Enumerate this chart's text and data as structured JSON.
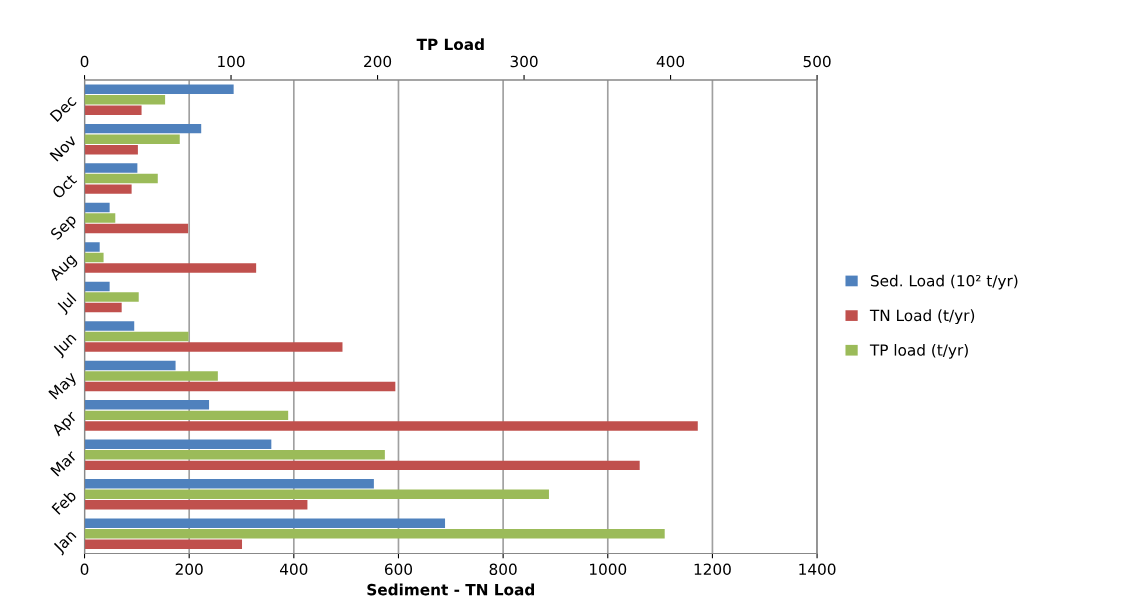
{
  "chart_data": {
    "type": "bar",
    "orientation": "horizontal",
    "xlabel": "Sediment - TN Load",
    "x2label": "TP Load",
    "categories": [
      "Dec",
      "Nov",
      "Oct",
      "Sep",
      "Aug",
      "Jul",
      "Jun",
      "May",
      "Apr",
      "Mar",
      "Feb",
      "Jan"
    ],
    "series": [
      {
        "name": "Sed. Load (10² t/yr)",
        "color": "#4f81bd",
        "values": [
          285,
          223,
          101,
          48,
          29,
          48,
          95,
          174,
          238,
          357,
          553,
          689
        ]
      },
      {
        "name": "TN Load (t/yr)",
        "color": "#c0504d",
        "values": [
          109,
          102,
          90,
          198,
          328,
          71,
          493,
          594,
          1172,
          1061,
          426,
          301
        ]
      },
      {
        "name": "TP load (t/yr)",
        "color": "#9bbb59",
        "axis": "x2",
        "values": [
          55,
          65,
          50,
          21,
          13,
          37,
          71,
          91,
          139,
          205,
          317,
          396
        ]
      }
    ],
    "xlim": [
      0,
      1400
    ],
    "xticks": [
      0,
      200,
      400,
      600,
      800,
      1000,
      1200,
      1400
    ],
    "x2lim": [
      0,
      500
    ],
    "x2ticks": [
      0,
      100,
      200,
      300,
      400,
      500
    ],
    "grid": "x",
    "legend": "right"
  }
}
